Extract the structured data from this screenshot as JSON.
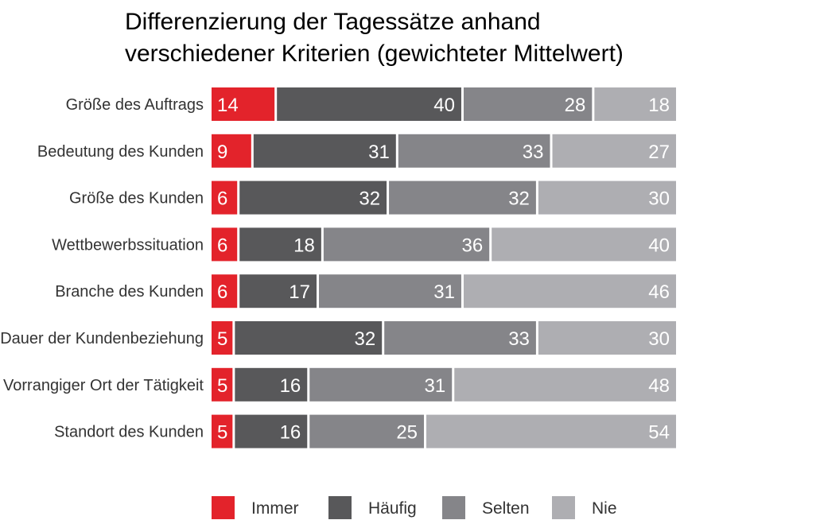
{
  "chart_data": {
    "type": "bar",
    "orientation": "horizontal",
    "stacked": true,
    "title_lines": [
      "Differenzierung der Tagessätze anhand",
      "verschiedener Kriterien (gewichteter Mittelwert)"
    ],
    "categories": [
      "Größe des Auftrags",
      "Bedeutung des Kunden",
      "Größe des Kunden",
      "Wettbewerbssituation",
      "Branche des Kunden",
      "Dauer der Kundenbeziehung",
      "Vorrangiger Ort der Tätigkeit",
      "Standort des Kunden"
    ],
    "series": [
      {
        "name": "Immer",
        "color": "#e3232b",
        "values": [
          14,
          9,
          6,
          6,
          6,
          5,
          5,
          5
        ]
      },
      {
        "name": "Häufig",
        "color": "#58585a",
        "values": [
          40,
          31,
          32,
          18,
          17,
          32,
          16,
          16
        ]
      },
      {
        "name": "Selten",
        "color": "#858589",
        "values": [
          28,
          33,
          32,
          36,
          31,
          33,
          31,
          25
        ]
      },
      {
        "name": "Nie",
        "color": "#aeaeb2",
        "values": [
          18,
          27,
          30,
          40,
          46,
          30,
          48,
          54
        ]
      }
    ],
    "xlim": [
      0,
      100
    ],
    "legend_position": "bottom",
    "grid": false
  }
}
